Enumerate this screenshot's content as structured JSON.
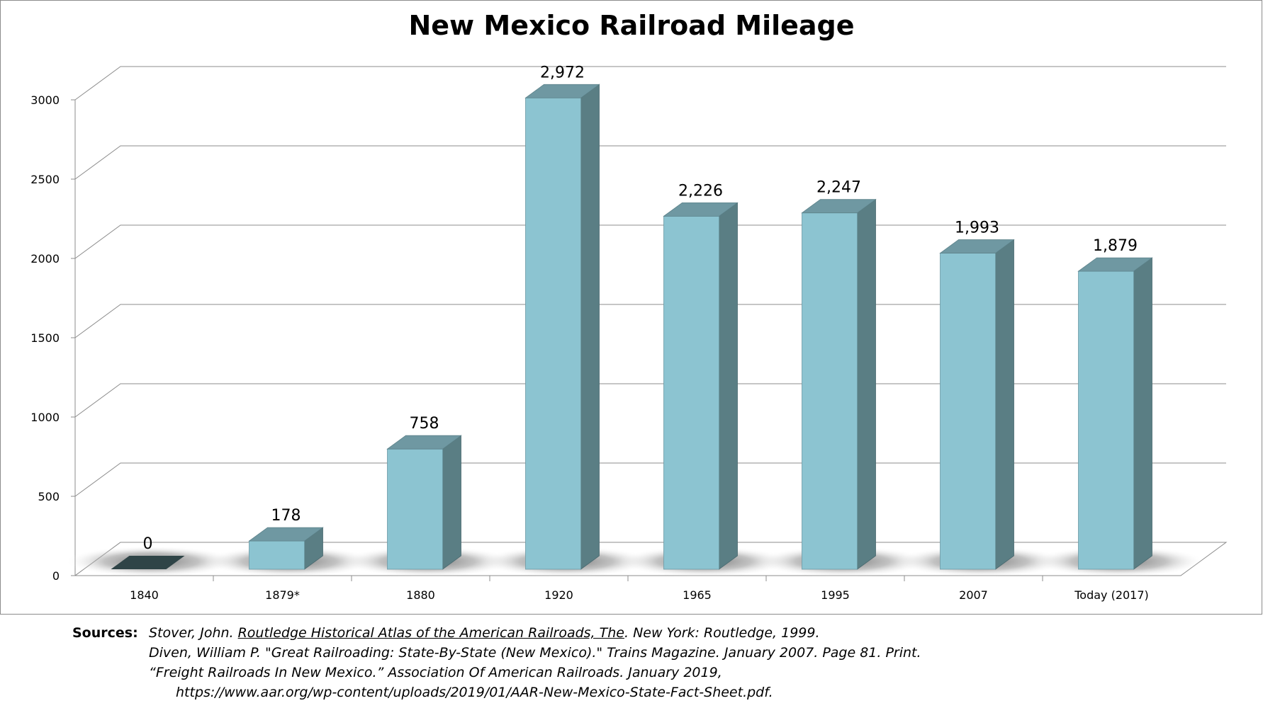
{
  "chart_data": {
    "type": "bar",
    "title": "New Mexico Railroad Mileage",
    "categories": [
      "1840",
      "1879*",
      "1880",
      "1920",
      "1965",
      "1995",
      "2007",
      "Today  (2017)"
    ],
    "values": [
      0,
      178,
      758,
      2972,
      2226,
      2247,
      1993,
      1879
    ],
    "value_labels": [
      "0",
      "178",
      "758",
      "2,972",
      "2,226",
      "2,247",
      "1,993",
      "1,879"
    ],
    "y_ticks": [
      "0",
      "500",
      "1000",
      "1500",
      "2000",
      "2500",
      "3000"
    ],
    "ylim": [
      0,
      3000
    ],
    "grid": true,
    "legend": "none",
    "style": "3d-column",
    "colors": {
      "bar_front": "#8cc4d1",
      "bar_top": "#6f98a2",
      "bar_side": "#5a7e84",
      "zero_bar": "#2f4447",
      "grid": "#8c8c8c"
    }
  },
  "sources": {
    "label": "Sources:",
    "lines": [
      {
        "pre": "Stover, John. ",
        "title": "Routledge Historical Atlas of the American Railroads, The",
        "post": ". New York: Routledge, 1999."
      },
      {
        "pre": "Diven, William P. \"Great Railroading: State-By-State (New Mexico).\" Trains Magazine. January 2007. Page 81. Print.",
        "title": "",
        "post": ""
      },
      {
        "pre": "“Freight Railroads In New Mexico.” Association Of American Railroads. January 2019,",
        "title": "",
        "post": ""
      },
      {
        "pre": "https://www.aar.org/wp-content/uploads/2019/01/AAR-New-Mexico-State-Fact-Sheet.pdf.",
        "title": "",
        "post": ""
      }
    ]
  }
}
